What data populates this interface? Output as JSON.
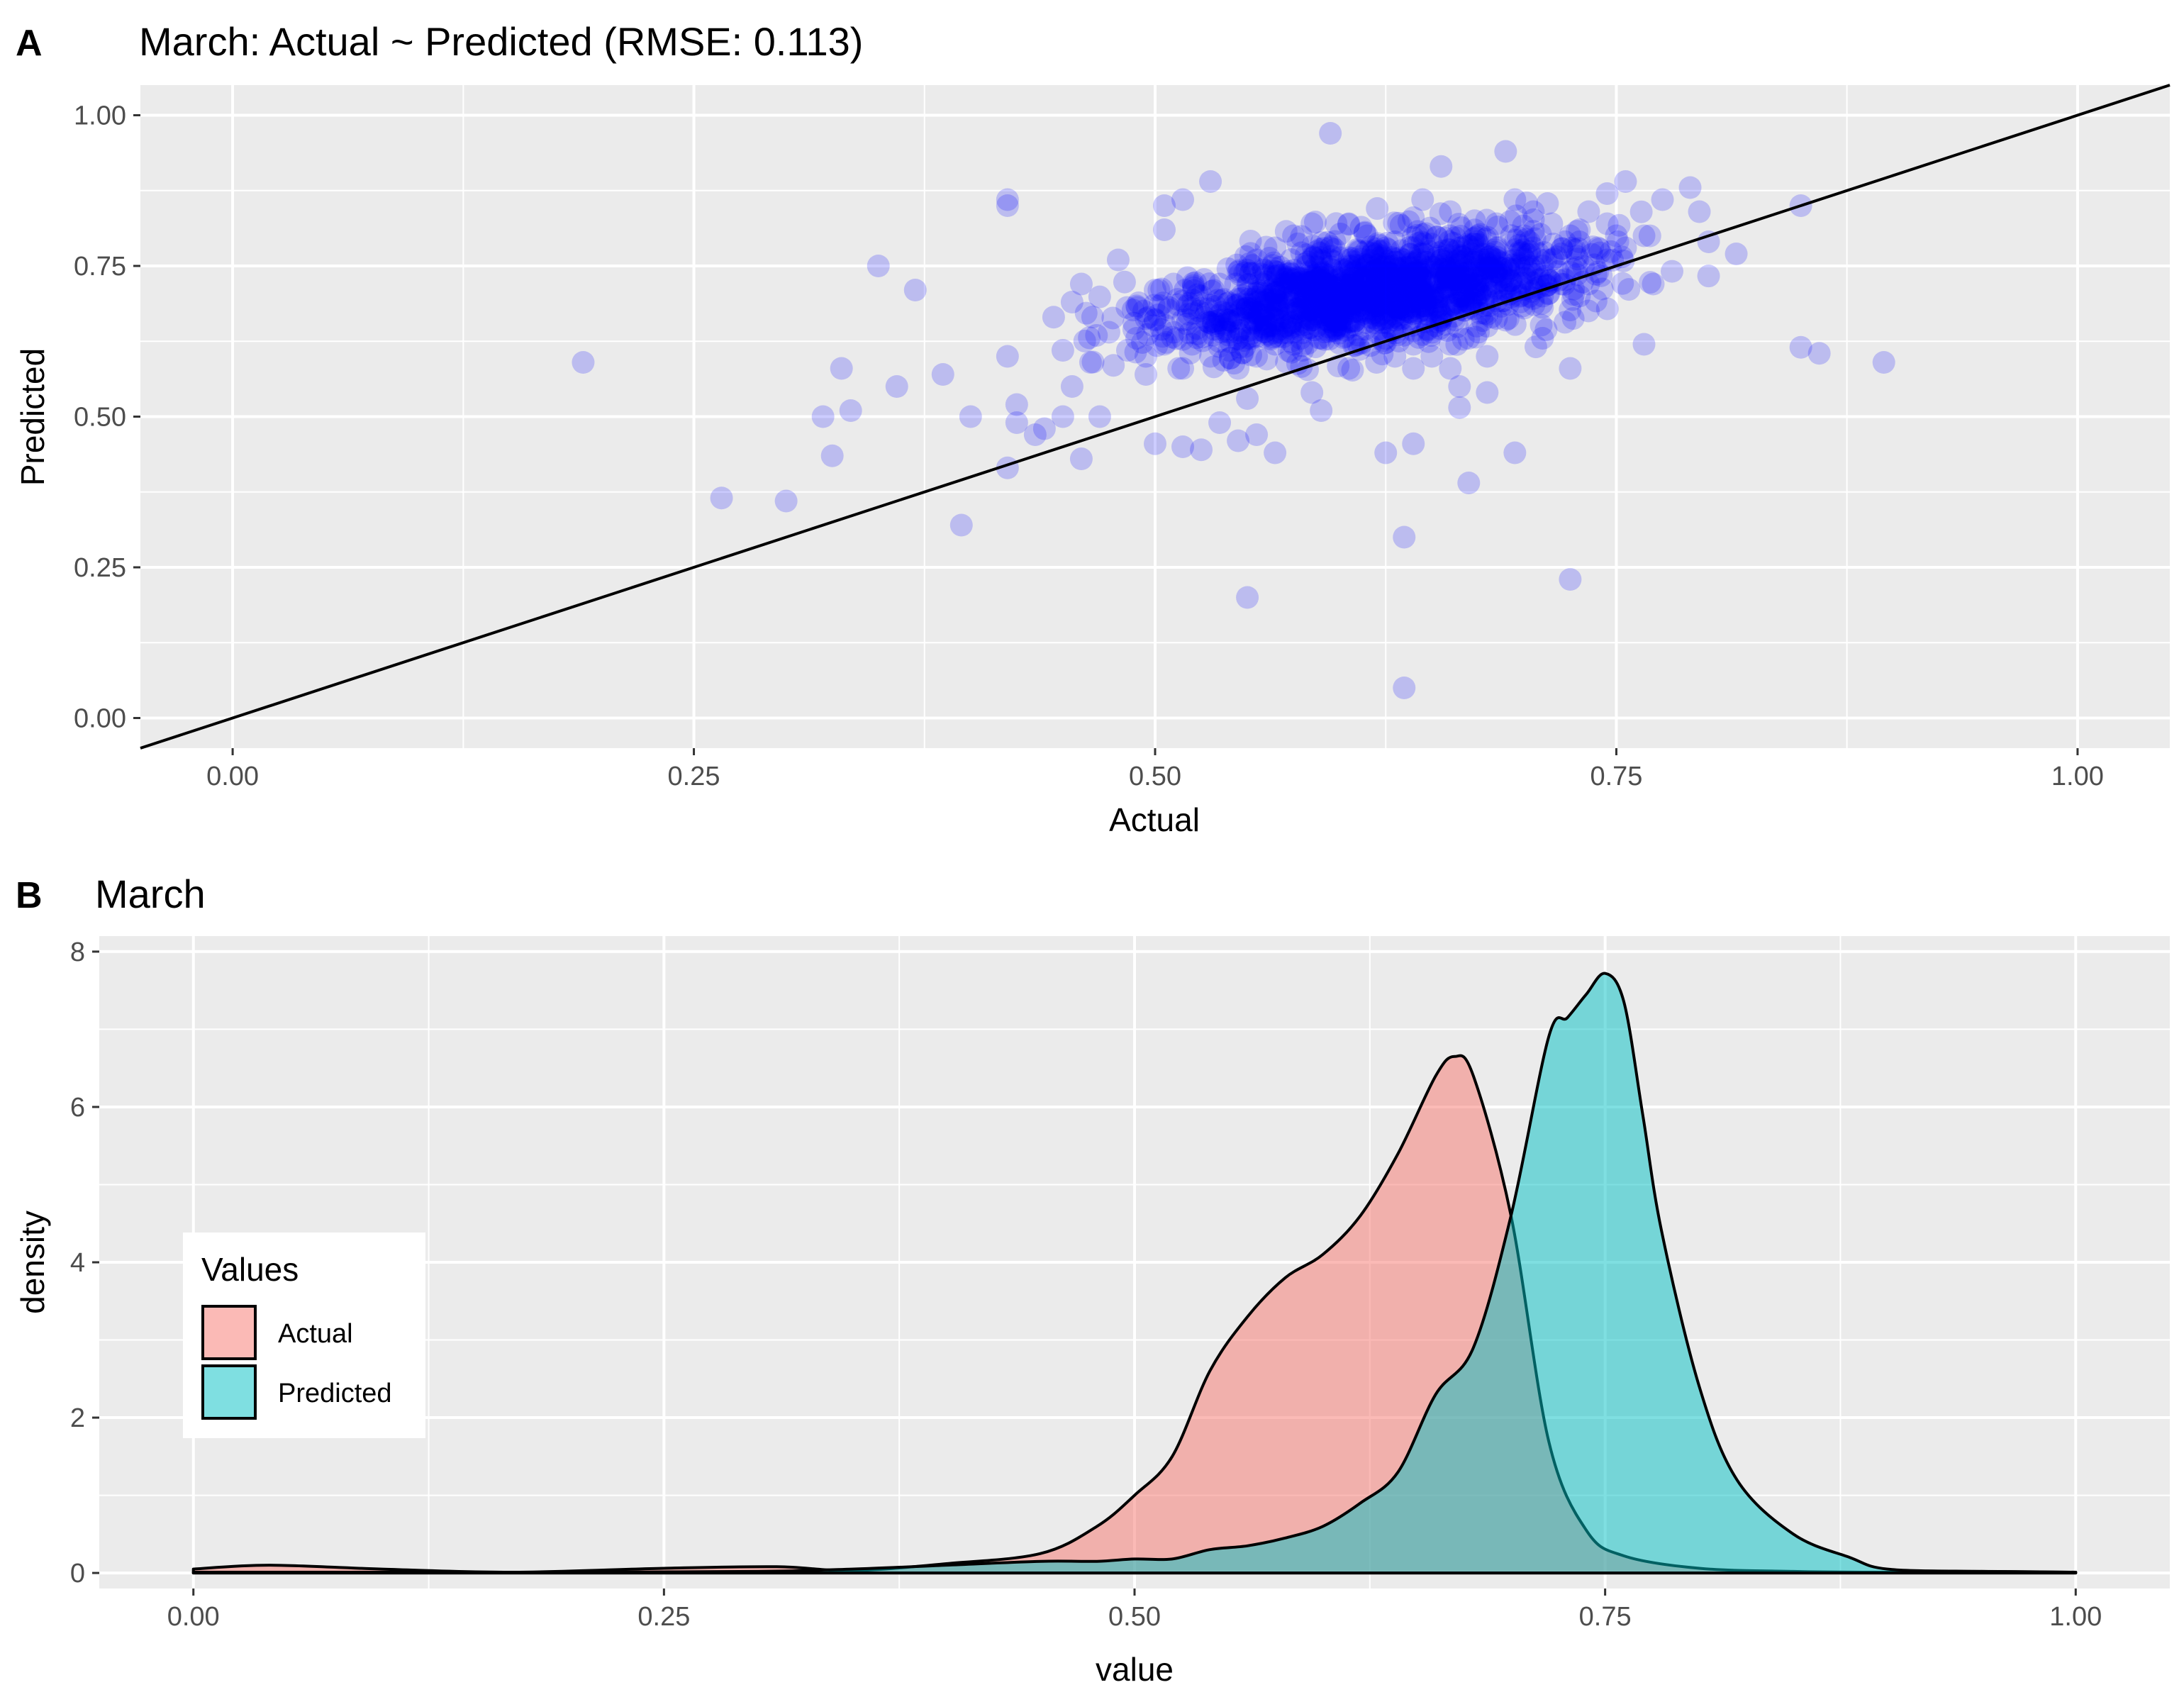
{
  "panels": [
    {
      "letter": "A",
      "title": "March: Actual ~ Predicted (RMSE: 0.113)"
    },
    {
      "letter": "B",
      "title": "March"
    }
  ],
  "chart_data": [
    {
      "type": "scatter",
      "title": "March: Actual ~ Predicted (RMSE: 0.113)",
      "xlabel": "Actual",
      "ylabel": "Predicted",
      "xlim": [
        -0.05,
        1.05
      ],
      "ylim": [
        -0.05,
        1.05
      ],
      "xticks": [
        "0.00",
        "0.25",
        "0.50",
        "0.75",
        "1.00"
      ],
      "yticks": [
        "0.00",
        "0.25",
        "0.50",
        "0.75",
        "1.00"
      ],
      "grid": true,
      "point_color": "#0000ff",
      "point_alpha": 0.2,
      "reference_line": {
        "slope": 1,
        "intercept": 0,
        "color": "#000000"
      },
      "cluster_center": [
        0.62,
        0.71
      ],
      "points": [
        [
          0.19,
          0.59
        ],
        [
          0.265,
          0.365
        ],
        [
          0.3,
          0.36
        ],
        [
          0.32,
          0.5
        ],
        [
          0.325,
          0.435
        ],
        [
          0.33,
          0.58
        ],
        [
          0.335,
          0.51
        ],
        [
          0.35,
          0.75
        ],
        [
          0.36,
          0.55
        ],
        [
          0.37,
          0.71
        ],
        [
          0.385,
          0.57
        ],
        [
          0.395,
          0.32
        ],
        [
          0.4,
          0.5
        ],
        [
          0.42,
          0.415
        ],
        [
          0.42,
          0.85
        ],
        [
          0.42,
          0.86
        ],
        [
          0.42,
          0.6
        ],
        [
          0.425,
          0.49
        ],
        [
          0.425,
          0.52
        ],
        [
          0.435,
          0.47
        ],
        [
          0.44,
          0.48
        ],
        [
          0.445,
          0.665
        ],
        [
          0.45,
          0.61
        ],
        [
          0.45,
          0.5
        ],
        [
          0.455,
          0.69
        ],
        [
          0.455,
          0.55
        ],
        [
          0.46,
          0.43
        ],
        [
          0.46,
          0.72
        ],
        [
          0.465,
          0.59
        ],
        [
          0.47,
          0.5
        ],
        [
          0.475,
          0.64
        ],
        [
          0.48,
          0.76
        ],
        [
          0.485,
          0.61
        ],
        [
          0.495,
          0.57
        ],
        [
          0.5,
          0.455
        ],
        [
          0.5,
          0.71
        ],
        [
          0.505,
          0.85
        ],
        [
          0.505,
          0.81
        ],
        [
          0.51,
          0.72
        ],
        [
          0.515,
          0.45
        ],
        [
          0.515,
          0.86
        ],
        [
          0.525,
          0.445
        ],
        [
          0.53,
          0.89
        ],
        [
          0.535,
          0.49
        ],
        [
          0.54,
          0.64
        ],
        [
          0.545,
          0.46
        ],
        [
          0.55,
          0.53
        ],
        [
          0.55,
          0.2
        ],
        [
          0.555,
          0.47
        ],
        [
          0.565,
          0.44
        ],
        [
          0.595,
          0.97
        ],
        [
          0.59,
          0.51
        ],
        [
          0.585,
          0.54
        ],
        [
          0.605,
          0.58
        ],
        [
          0.625,
          0.44
        ],
        [
          0.635,
          0.3
        ],
        [
          0.635,
          0.05
        ],
        [
          0.64,
          0.455
        ],
        [
          0.67,
          0.39
        ],
        [
          0.665,
          0.55
        ],
        [
          0.665,
          0.515
        ],
        [
          0.68,
          0.54
        ],
        [
          0.695,
          0.44
        ],
        [
          0.725,
          0.58
        ],
        [
          0.725,
          0.23
        ],
        [
          0.69,
          0.94
        ],
        [
          0.765,
          0.62
        ],
        [
          0.77,
          0.72
        ],
        [
          0.79,
          0.88
        ],
        [
          0.795,
          0.84
        ],
        [
          0.8,
          0.79
        ],
        [
          0.815,
          0.77
        ],
        [
          0.85,
          0.85
        ],
        [
          0.85,
          0.615
        ],
        [
          0.86,
          0.605
        ],
        [
          0.895,
          0.59
        ],
        [
          0.755,
          0.89
        ],
        [
          0.775,
          0.86
        ],
        [
          0.745,
          0.87
        ],
        [
          0.73,
          0.81
        ],
        [
          0.7,
          0.8
        ],
        [
          0.71,
          0.63
        ],
        [
          0.68,
          0.6
        ],
        [
          0.66,
          0.84
        ],
        [
          0.655,
          0.915
        ],
        [
          0.645,
          0.86
        ],
        [
          0.64,
          0.83
        ],
        [
          0.63,
          0.79
        ],
        [
          0.62,
          0.77
        ],
        [
          0.61,
          0.75
        ],
        [
          0.6,
          0.73
        ],
        [
          0.59,
          0.71
        ],
        [
          0.58,
          0.69
        ],
        [
          0.57,
          0.67
        ],
        [
          0.56,
          0.65
        ],
        [
          0.55,
          0.63
        ],
        [
          0.54,
          0.61
        ],
        [
          0.53,
          0.6
        ],
        [
          0.52,
          0.62
        ],
        [
          0.51,
          0.64
        ],
        [
          0.5,
          0.66
        ],
        [
          0.49,
          0.63
        ],
        [
          0.495,
          0.6
        ],
        [
          0.515,
          0.58
        ],
        [
          0.525,
          0.7
        ],
        [
          0.535,
          0.72
        ],
        [
          0.545,
          0.74
        ],
        [
          0.555,
          0.76
        ],
        [
          0.565,
          0.78
        ],
        [
          0.575,
          0.8
        ],
        [
          0.585,
          0.82
        ],
        [
          0.595,
          0.78
        ],
        [
          0.605,
          0.76
        ],
        [
          0.615,
          0.74
        ],
        [
          0.625,
          0.72
        ],
        [
          0.635,
          0.7
        ],
        [
          0.645,
          0.68
        ],
        [
          0.655,
          0.66
        ],
        [
          0.665,
          0.7
        ],
        [
          0.675,
          0.72
        ],
        [
          0.685,
          0.74
        ],
        [
          0.695,
          0.76
        ],
        [
          0.705,
          0.78
        ],
        [
          0.715,
          0.76
        ],
        [
          0.725,
          0.74
        ],
        [
          0.735,
          0.72
        ],
        [
          0.745,
          0.76
        ],
        [
          0.755,
          0.78
        ],
        [
          0.765,
          0.8
        ],
        [
          0.745,
          0.82
        ],
        [
          0.735,
          0.84
        ],
        [
          0.725,
          0.8
        ],
        [
          0.715,
          0.82
        ],
        [
          0.705,
          0.84
        ],
        [
          0.695,
          0.86
        ],
        [
          0.685,
          0.82
        ],
        [
          0.675,
          0.8
        ],
        [
          0.665,
          0.78
        ],
        [
          0.655,
          0.76
        ],
        [
          0.645,
          0.74
        ],
        [
          0.635,
          0.76
        ],
        [
          0.625,
          0.78
        ],
        [
          0.615,
          0.8
        ],
        [
          0.605,
          0.82
        ],
        [
          0.595,
          0.7
        ],
        [
          0.585,
          0.66
        ],
        [
          0.575,
          0.64
        ],
        [
          0.565,
          0.62
        ],
        [
          0.555,
          0.6
        ],
        [
          0.545,
          0.58
        ],
        [
          0.535,
          0.66
        ],
        [
          0.525,
          0.68
        ],
        [
          0.515,
          0.66
        ],
        [
          0.505,
          0.62
        ],
        [
          0.61,
          0.62
        ],
        [
          0.62,
          0.64
        ],
        [
          0.63,
          0.66
        ],
        [
          0.64,
          0.62
        ],
        [
          0.65,
          0.64
        ],
        [
          0.66,
          0.62
        ],
        [
          0.67,
          0.68
        ],
        [
          0.68,
          0.7
        ],
        [
          0.69,
          0.66
        ],
        [
          0.7,
          0.68
        ],
        [
          0.71,
          0.7
        ],
        [
          0.72,
          0.72
        ],
        [
          0.73,
          0.7
        ],
        [
          0.74,
          0.74
        ],
        [
          0.6,
          0.65
        ],
        [
          0.59,
          0.63
        ],
        [
          0.58,
          0.61
        ],
        [
          0.57,
          0.72
        ],
        [
          0.56,
          0.7
        ],
        [
          0.55,
          0.68
        ],
        [
          0.54,
          0.66
        ],
        [
          0.62,
          0.59
        ],
        [
          0.63,
          0.6
        ],
        [
          0.64,
          0.58
        ],
        [
          0.65,
          0.6
        ],
        [
          0.66,
          0.58
        ],
        [
          0.67,
          0.63
        ],
        [
          0.68,
          0.65
        ],
        [
          0.69,
          0.71
        ],
        [
          0.7,
          0.73
        ],
        [
          0.71,
          0.75
        ],
        [
          0.72,
          0.77
        ],
        [
          0.73,
          0.79
        ],
        [
          0.74,
          0.78
        ],
        [
          0.75,
          0.8
        ]
      ]
    },
    {
      "type": "area",
      "title": "March",
      "xlabel": "value",
      "ylabel": "density",
      "xlim": [
        -0.05,
        1.05
      ],
      "ylim": [
        -0.2,
        8.2
      ],
      "xticks": [
        "0.00",
        "0.25",
        "0.50",
        "0.75",
        "1.00"
      ],
      "yticks": [
        "0",
        "2",
        "4",
        "6",
        "8"
      ],
      "grid": true,
      "legend": {
        "title": "Values",
        "position": "left"
      },
      "series": [
        {
          "name": "Actual",
          "color": "#F8766D",
          "x": [
            0.0,
            0.04,
            0.1,
            0.17,
            0.25,
            0.31,
            0.35,
            0.4,
            0.45,
            0.48,
            0.5,
            0.52,
            0.54,
            0.56,
            0.58,
            0.6,
            0.62,
            0.64,
            0.66,
            0.67,
            0.68,
            0.7,
            0.72,
            0.74,
            0.76,
            0.8,
            0.85,
            0.9,
            0.95,
            1.0
          ],
          "values": [
            0.05,
            0.1,
            0.05,
            0.01,
            0.06,
            0.08,
            0.03,
            0.12,
            0.25,
            0.6,
            1.0,
            1.5,
            2.6,
            3.3,
            3.8,
            4.1,
            4.6,
            5.4,
            6.4,
            6.65,
            6.4,
            4.6,
            1.7,
            0.55,
            0.22,
            0.06,
            0.02,
            0.01,
            0.02,
            0.01
          ]
        },
        {
          "name": "Predicted",
          "color": "#00BFC4",
          "x": [
            0.0,
            0.1,
            0.2,
            0.3,
            0.35,
            0.4,
            0.45,
            0.48,
            0.5,
            0.52,
            0.54,
            0.56,
            0.58,
            0.6,
            0.62,
            0.64,
            0.66,
            0.68,
            0.7,
            0.72,
            0.73,
            0.74,
            0.75,
            0.76,
            0.77,
            0.78,
            0.8,
            0.82,
            0.85,
            0.88,
            0.9,
            0.95,
            1.0
          ],
          "values": [
            0.01,
            0.01,
            0.01,
            0.02,
            0.05,
            0.1,
            0.15,
            0.15,
            0.18,
            0.18,
            0.3,
            0.35,
            0.45,
            0.6,
            0.9,
            1.3,
            2.3,
            2.9,
            4.6,
            6.9,
            7.15,
            7.45,
            7.72,
            7.35,
            5.9,
            4.4,
            2.4,
            1.2,
            0.5,
            0.2,
            0.05,
            0.02,
            0.01
          ]
        }
      ]
    }
  ]
}
